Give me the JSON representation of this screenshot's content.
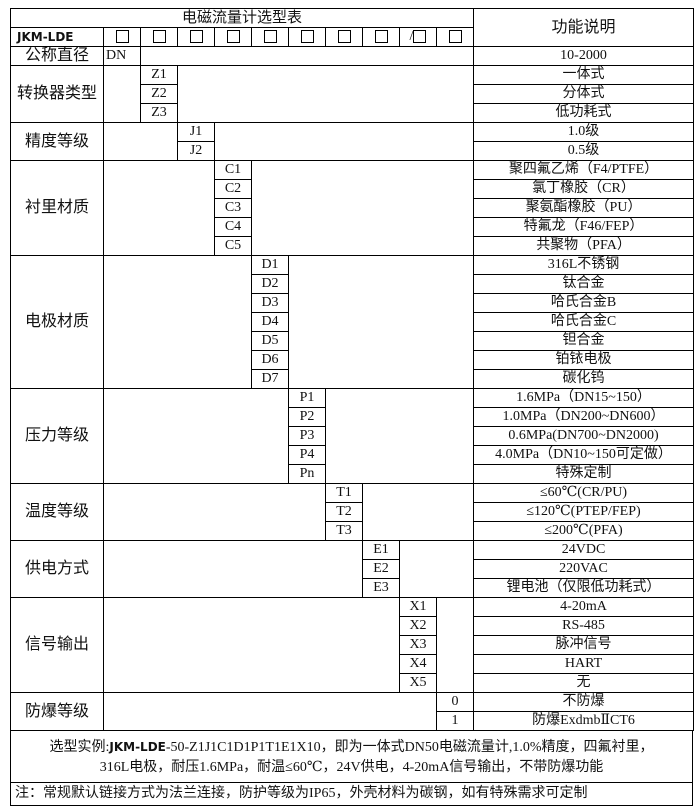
{
  "title": "电磁流量计选型表",
  "function_header": "功能说明",
  "model": "JKM-LDE",
  "slot_suffix_slash": "/",
  "diameter": {
    "label": "公称直径",
    "code": "DN",
    "desc": "10-2000"
  },
  "groups": [
    {
      "label": "转换器类型",
      "col": 2,
      "items": [
        {
          "code": "Z1",
          "desc": "一体式"
        },
        {
          "code": "Z2",
          "desc": "分体式"
        },
        {
          "code": "Z3",
          "desc": "低功耗式"
        }
      ]
    },
    {
      "label": "精度等级",
      "col": 3,
      "items": [
        {
          "code": "J1",
          "desc": "1.0级"
        },
        {
          "code": "J2",
          "desc": "0.5级"
        }
      ]
    },
    {
      "label": "衬里材质",
      "col": 4,
      "items": [
        {
          "code": "C1",
          "desc": "聚四氟乙烯（F4/PTFE）"
        },
        {
          "code": "C2",
          "desc": "氯丁橡胶（CR）"
        },
        {
          "code": "C3",
          "desc": "聚氨酯橡胶（PU）"
        },
        {
          "code": "C4",
          "desc": "特氟龙（F46/FEP）"
        },
        {
          "code": "C5",
          "desc": "共聚物（PFA）"
        }
      ]
    },
    {
      "label": "电极材质",
      "col": 5,
      "items": [
        {
          "code": "D1",
          "desc": "316L不锈钢"
        },
        {
          "code": "D2",
          "desc": "钛合金"
        },
        {
          "code": "D3",
          "desc": "哈氏合金B"
        },
        {
          "code": "D4",
          "desc": "哈氏合金C"
        },
        {
          "code": "D5",
          "desc": "钽合金"
        },
        {
          "code": "D6",
          "desc": "铂铱电极"
        },
        {
          "code": "D7",
          "desc": "碳化钨"
        }
      ]
    },
    {
      "label": "压力等级",
      "col": 6,
      "items": [
        {
          "code": "P1",
          "desc": "1.6MPa（DN15~150）"
        },
        {
          "code": "P2",
          "desc": "1.0MPa（DN200~DN600）"
        },
        {
          "code": "P3",
          "desc": "0.6MPa(DN700~DN2000)"
        },
        {
          "code": "P4",
          "desc": "4.0MPa（DN10~150可定做）"
        },
        {
          "code": "Pn",
          "desc": "特殊定制"
        }
      ]
    },
    {
      "label": "温度等级",
      "col": 7,
      "items": [
        {
          "code": "T1",
          "desc": "≤60℃(CR/PU)"
        },
        {
          "code": "T2",
          "desc": "≤120℃(PTEP/FEP)"
        },
        {
          "code": "T3",
          "desc": "≤200℃(PFA)"
        }
      ]
    },
    {
      "label": "供电方式",
      "col": 8,
      "items": [
        {
          "code": "E1",
          "desc": "24VDC"
        },
        {
          "code": "E2",
          "desc": "220VAC"
        },
        {
          "code": "E3",
          "desc": "锂电池（仅限低功耗式）"
        }
      ]
    },
    {
      "label": "信号输出",
      "col": 9,
      "items": [
        {
          "code": "X1",
          "desc": "4-20mA"
        },
        {
          "code": "X2",
          "desc": "RS-485"
        },
        {
          "code": "X3",
          "desc": "脉冲信号"
        },
        {
          "code": "X4",
          "desc": "HART"
        },
        {
          "code": "X5",
          "desc": "无"
        }
      ]
    },
    {
      "label": "防爆等级",
      "col": 10,
      "items": [
        {
          "code": "0",
          "desc": "不防爆"
        },
        {
          "code": "1",
          "desc": "防爆ExdmbⅡCT6"
        }
      ]
    }
  ],
  "example": {
    "prefix": "选型实例:",
    "model": "JKM-LDE",
    "line1_rest": "-50-Z1J1C1D1P1T1E1X10，即为一体式DN50电磁流量计,1.0%精度，四氟衬里，",
    "line2": "316L电极，耐压1.6MPa，耐温≤60℃，24V供电，4-20mA信号输出，不带防爆功能"
  },
  "note": "注：常规默认链接方式为法兰连接，防护等级为IP65，外壳材料为碳钢，如有特殊需求可定制"
}
